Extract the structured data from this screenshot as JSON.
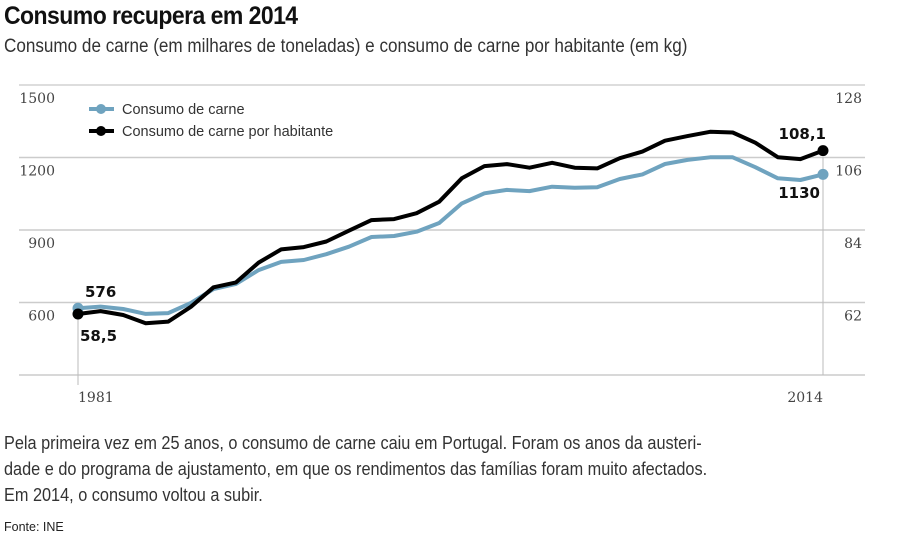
{
  "chart_data": {
    "type": "line",
    "title": "Consumo recupera em 2014",
    "subtitle": "Consumo de carne (em milhares de toneladas) e consumo de carne por habitante (em kg)",
    "x": [
      1981,
      1982,
      1983,
      1984,
      1985,
      1986,
      1987,
      1988,
      1989,
      1990,
      1991,
      1992,
      1993,
      1994,
      1995,
      1996,
      1997,
      1998,
      1999,
      2000,
      2001,
      2002,
      2003,
      2004,
      2005,
      2006,
      2007,
      2008,
      2009,
      2010,
      2011,
      2012,
      2013,
      2014
    ],
    "x_tick_labels": [
      "1981",
      "2014"
    ],
    "y_left": {
      "ticks": [
        "1500",
        "1200",
        "900",
        "600"
      ],
      "range": [
        300,
        1500
      ]
    },
    "y_right": {
      "ticks": [
        "128",
        "106",
        "84",
        "62"
      ],
      "range": [
        40,
        128
      ]
    },
    "grid": true,
    "legend_position": "top-left",
    "colors": {
      "consumo": "#6fa3bf",
      "per_capita": "#000000"
    },
    "series": [
      {
        "name": "Consumo de carne",
        "axis": "left",
        "values": [
          576,
          583,
          573,
          553,
          556,
          598,
          656,
          677,
          734,
          768,
          776,
          800,
          831,
          871,
          875,
          893,
          929,
          1010,
          1052,
          1066,
          1061,
          1079,
          1075,
          1077,
          1111,
          1130,
          1173,
          1190,
          1201,
          1201,
          1160,
          1114,
          1107,
          1130
        ]
      },
      {
        "name": "Consumo de carne por habitante",
        "axis": "right",
        "values": [
          58.5,
          59.4,
          58.2,
          55.7,
          56.2,
          60.7,
          66.6,
          68.1,
          74.1,
          78.1,
          78.8,
          80.5,
          83.8,
          87.0,
          87.3,
          89.1,
          92.6,
          99.7,
          103.4,
          104.0,
          102.9,
          104.4,
          102.9,
          102.7,
          105.8,
          107.8,
          111.1,
          112.5,
          113.8,
          113.6,
          110.5,
          106.1,
          105.5,
          108.1
        ]
      }
    ],
    "annotations": {
      "consumo_start": "576",
      "per_capita_start": "58,5",
      "per_capita_end": "108,1",
      "consumo_end": "1130"
    }
  },
  "body_text": [
    "Pela primeira vez em 25 anos, o consumo de carne caiu em Portugal. Foram os anos da austeri-",
    "dade e do programa de ajustamento, em que os rendimentos das famílias foram muito afectados.",
    "Em 2014, o consumo voltou a subir."
  ],
  "source": "Fonte: INE"
}
